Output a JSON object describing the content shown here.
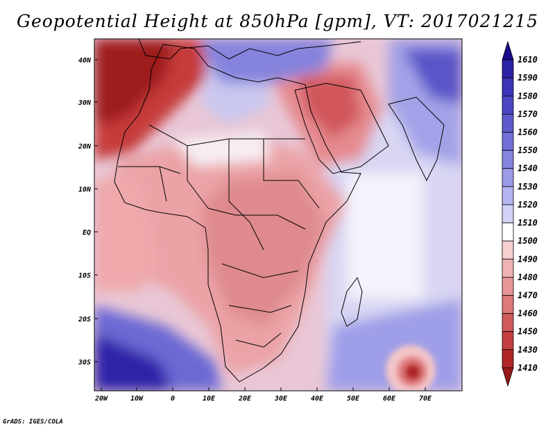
{
  "title": "Geopotential Height at 850hPa [gpm], VT: 2017021215",
  "footer": "GrADS: IGES/COLA",
  "axes": {
    "lon_labels": [
      "20W",
      "10W",
      "0",
      "10E",
      "20E",
      "30E",
      "40E",
      "50E",
      "60E",
      "70E"
    ],
    "lat_labels": [
      "40N",
      "30N",
      "20N",
      "10N",
      "EQ",
      "10S",
      "20S",
      "30S"
    ]
  },
  "colorbar": {
    "levels": [
      "1610",
      "1590",
      "1580",
      "1570",
      "1560",
      "1550",
      "1540",
      "1530",
      "1520",
      "1510",
      "1500",
      "1490",
      "1480",
      "1470",
      "1460",
      "1450",
      "1430",
      "1410"
    ],
    "colors": [
      "#1a0a8f",
      "#2c22a8",
      "#3b34b8",
      "#4b46c4",
      "#5d5ace",
      "#716fd8",
      "#8684e0",
      "#9c9be8",
      "#b4b4f0",
      "#d2d2f7",
      "#ffffff",
      "#f6cfcf",
      "#efb2b2",
      "#e69696",
      "#dc7a7a",
      "#d15a5a",
      "#c43f3f",
      "#b02525",
      "#981818"
    ]
  }
}
